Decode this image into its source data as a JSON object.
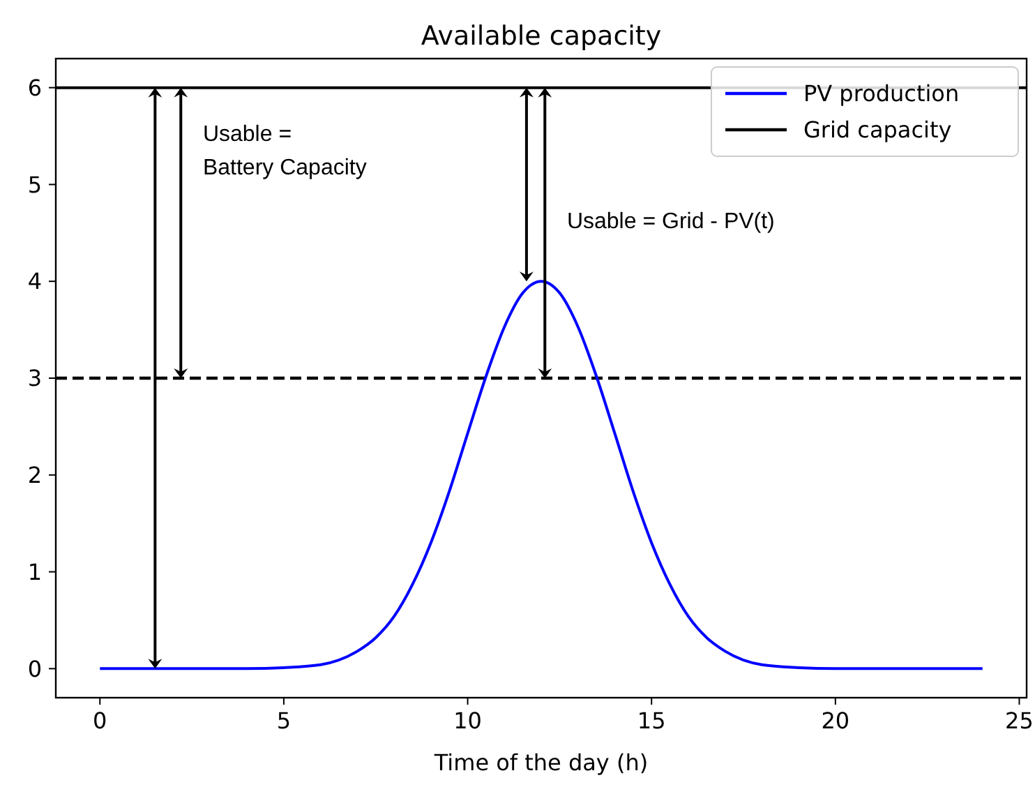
{
  "chart_data": {
    "type": "line",
    "title": "Available capacity",
    "xlabel": "Time of the day (h)",
    "xlim": [
      -1.2,
      25.2
    ],
    "ylim": [
      -0.3,
      6.3
    ],
    "xticks": [
      0,
      5,
      10,
      15,
      20,
      25
    ],
    "yticks": [
      0,
      1,
      2,
      3,
      4,
      5,
      6
    ],
    "grid": false,
    "legend": "top right",
    "marker": "none",
    "line_style": "solid",
    "series": [
      {
        "name": "PV production",
        "color": "#0000ff",
        "x": [
          0,
          2,
          4,
          5,
          6,
          7,
          7.5,
          8,
          8.5,
          9,
          9.5,
          10,
          10.5,
          11,
          11.5,
          12,
          12.5,
          13,
          13.5,
          14,
          14.5,
          15,
          15.5,
          16,
          16.5,
          17,
          18,
          19,
          20,
          22,
          24
        ],
        "values": [
          0,
          0,
          0,
          0.01,
          0.04,
          0.18,
          0.32,
          0.54,
          0.87,
          1.3,
          1.83,
          2.43,
          3.02,
          3.53,
          3.88,
          4,
          3.88,
          3.53,
          3.02,
          2.43,
          1.83,
          1.3,
          0.87,
          0.54,
          0.32,
          0.18,
          0.04,
          0.01,
          0,
          0,
          0
        ]
      },
      {
        "name": "Grid capacity",
        "color": "#000000",
        "x": [
          -1.2,
          25.2
        ],
        "values": [
          6,
          6
        ]
      }
    ],
    "ref_lines": [
      {
        "axis": "y",
        "value": 3,
        "color": "#000000",
        "line_style": "dashed"
      }
    ],
    "annotations": [
      "Usable =\nBattery Capacity",
      "Usable = Grid  - PV(t)"
    ]
  }
}
